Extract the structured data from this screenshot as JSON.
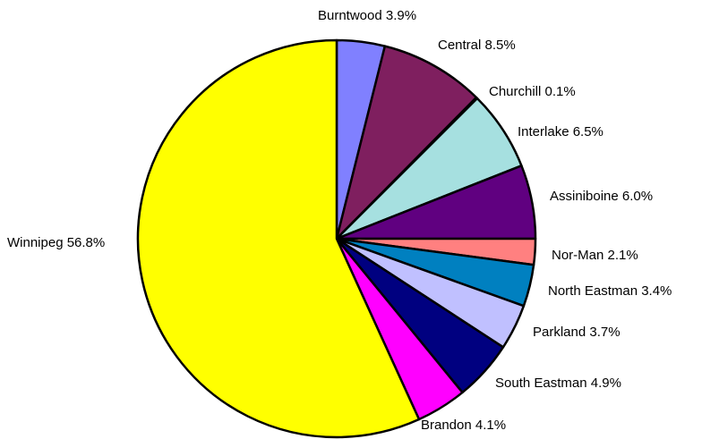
{
  "chart_data": {
    "type": "pie",
    "title": "",
    "start_angle_deg": 0,
    "direction": "clockwise",
    "slices": [
      {
        "name": "Burntwood",
        "value": 3.9,
        "label": "Burntwood 3.9%",
        "color": "#8080ff"
      },
      {
        "name": "Central",
        "value": 8.5,
        "label": "Central 8.5%",
        "color": "#7f1f5f"
      },
      {
        "name": "Churchill",
        "value": 0.1,
        "label": "Churchill 0.1%",
        "color": "#ffffcc"
      },
      {
        "name": "Interlake",
        "value": 6.5,
        "label": "Interlake 6.5%",
        "color": "#a6e0e0"
      },
      {
        "name": "Assiniboine",
        "value": 6.0,
        "label": "Assiniboine 6.0%",
        "color": "#600080"
      },
      {
        "name": "Nor-Man",
        "value": 2.1,
        "label": "Nor-Man 2.1%",
        "color": "#ff8080"
      },
      {
        "name": "North Eastman",
        "value": 3.4,
        "label": "North Eastman 3.4%",
        "color": "#0080c0"
      },
      {
        "name": "Parkland",
        "value": 3.7,
        "label": "Parkland 3.7%",
        "color": "#c0c0ff"
      },
      {
        "name": "South Eastman",
        "value": 4.9,
        "label": "South Eastman 4.9%",
        "color": "#000080"
      },
      {
        "name": "Brandon",
        "value": 4.1,
        "label": "Brandon 4.1%",
        "color": "#ff00ff"
      },
      {
        "name": "Winnipeg",
        "value": 56.8,
        "label": "Winnipeg 56.8%",
        "color": "#ffff00"
      }
    ],
    "legend": "none"
  }
}
